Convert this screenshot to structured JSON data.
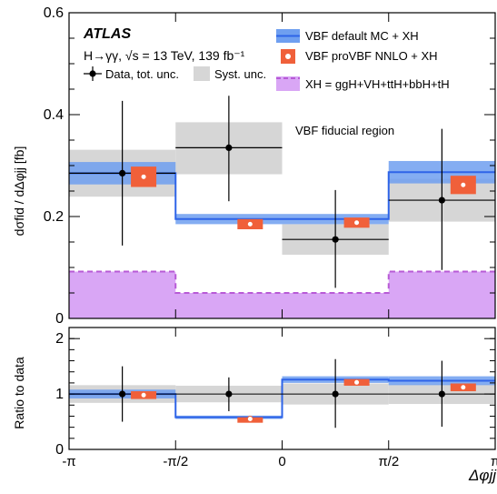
{
  "chart_data": [
    {
      "type": "line",
      "experiment": "ATLAS",
      "process_label": "H→γγ, √s = 13 TeV, 139 fb⁻¹",
      "region_label": "VBF fiducial region",
      "ylabel": "dσfid / dΔφjj [fb]",
      "ylim": [
        0,
        0.6
      ],
      "yticks": [
        "0",
        "0.2",
        "0.4",
        "0.6"
      ],
      "bin_edges_label": [
        "-π",
        "-π/2",
        "0",
        "π/2",
        "π"
      ],
      "x_bins": [
        "-π to -π/2",
        "-π/2 to 0",
        "0 to π/2",
        "π/2 to π"
      ],
      "legend": {
        "data": "Data, tot. unc.",
        "syst": "Syst. unc.",
        "vbf_default": "VBF default MC + XH",
        "provbf": "VBF proVBF NNLO + XH",
        "xh": "XH = ggH+VH+ttH+bbH+tH"
      },
      "series": [
        {
          "name": "Data, tot. unc.",
          "values": [
            0.285,
            0.335,
            0.155,
            0.232
          ],
          "err_low": [
            0.142,
            0.105,
            0.095,
            0.137
          ],
          "err_high": [
            0.142,
            0.102,
            0.097,
            0.14
          ],
          "syst_low": [
            0.046,
            0.052,
            0.03,
            0.042
          ],
          "syst_high": [
            0.046,
            0.05,
            0.03,
            0.042
          ]
        },
        {
          "name": "VBF default MC + XH",
          "values": [
            0.285,
            0.195,
            0.195,
            0.287
          ],
          "band_half": [
            0.022,
            0.01,
            0.01,
            0.022
          ]
        },
        {
          "name": "VBF proVBF NNLO + XH",
          "values": [
            0.278,
            0.185,
            0.188,
            0.262
          ],
          "band_half": [
            0.02,
            0.01,
            0.01,
            0.018
          ]
        },
        {
          "name": "XH = ggH+VH+ttH+bbH+tH",
          "values": [
            0.092,
            0.05,
            0.05,
            0.092
          ]
        }
      ],
      "colors": {
        "vbf_default": "#2e64e8",
        "vbf_band": "#6f9ff0",
        "provbf": "#f0603a",
        "xh_fill": "#d9a6f5",
        "xh_line": "#b85ad6",
        "syst": "#d6d6d6"
      }
    },
    {
      "type": "line",
      "ylabel": "Ratio to data",
      "ylim": [
        0,
        2.2
      ],
      "yticks": [
        "0",
        "1",
        "2"
      ],
      "xlabel": "Δφjj",
      "series": [
        {
          "name": "Data",
          "values": [
            1.0,
            1.0,
            1.0,
            1.0
          ],
          "err_low": [
            0.5,
            0.31,
            0.61,
            0.59
          ],
          "err_high": [
            0.5,
            0.3,
            0.63,
            0.6
          ],
          "syst_low": [
            0.16,
            0.15,
            0.19,
            0.18
          ],
          "syst_high": [
            0.16,
            0.15,
            0.19,
            0.18
          ]
        },
        {
          "name": "VBF default MC + XH",
          "values": [
            1.0,
            0.58,
            1.26,
            1.24
          ],
          "band_half": [
            0.08,
            0.03,
            0.06,
            0.08
          ]
        },
        {
          "name": "VBF proVBF NNLO + XH",
          "values": [
            0.98,
            0.55,
            1.21,
            1.12
          ],
          "band_half": [
            0.07,
            0.03,
            0.06,
            0.07
          ]
        }
      ]
    }
  ]
}
